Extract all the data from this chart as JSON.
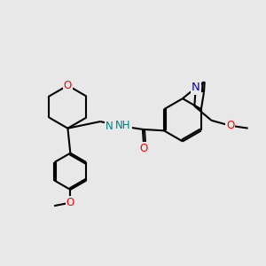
{
  "bg_color": "#e8e8e8",
  "bond_color": "#000000",
  "atom_colors": {
    "O": "#ff0000",
    "N": "#0000cd",
    "NH": "#008080",
    "C": "#000000"
  },
  "bond_width": 1.5,
  "font_size_atom": 8.5,
  "figsize": [
    3.0,
    3.0
  ],
  "dpi": 100
}
